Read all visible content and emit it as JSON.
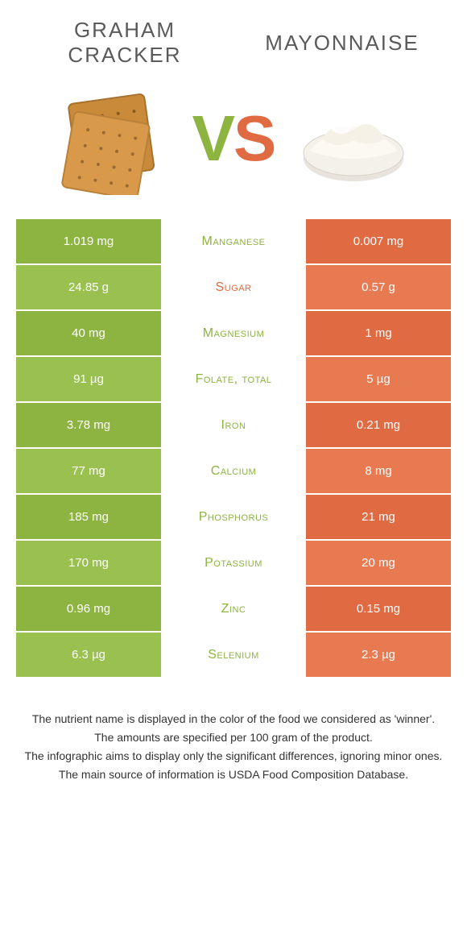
{
  "colors": {
    "left_bg": "#8db340",
    "left_bg_alt": "#9ac050",
    "right_bg": "#e06a42",
    "right_bg_alt": "#e87a52",
    "left_text": "#8db340",
    "right_text": "#e06a42",
    "row_border": "#ffffff"
  },
  "header": {
    "left_title": "Graham cracker",
    "right_title": "Mayonnaise",
    "vs_v": "V",
    "vs_s": "S"
  },
  "table": {
    "rows": [
      {
        "left": "1.019 mg",
        "label": "Manganese",
        "right": "0.007 mg",
        "winner": "left"
      },
      {
        "left": "24.85 g",
        "label": "Sugar",
        "right": "0.57 g",
        "winner": "right"
      },
      {
        "left": "40 mg",
        "label": "Magnesium",
        "right": "1 mg",
        "winner": "left"
      },
      {
        "left": "91 µg",
        "label": "Folate, total",
        "right": "5 µg",
        "winner": "left"
      },
      {
        "left": "3.78 mg",
        "label": "Iron",
        "right": "0.21 mg",
        "winner": "left"
      },
      {
        "left": "77 mg",
        "label": "Calcium",
        "right": "8 mg",
        "winner": "left"
      },
      {
        "left": "185 mg",
        "label": "Phosphorus",
        "right": "21 mg",
        "winner": "left"
      },
      {
        "left": "170 mg",
        "label": "Potassium",
        "right": "20 mg",
        "winner": "left"
      },
      {
        "left": "0.96 mg",
        "label": "Zinc",
        "right": "0.15 mg",
        "winner": "left"
      },
      {
        "left": "6.3 µg",
        "label": "Selenium",
        "right": "2.3 µg",
        "winner": "left"
      }
    ]
  },
  "footer": {
    "line1": "The nutrient name is displayed in the color of the food we considered as 'winner'.",
    "line2": "The amounts are specified per 100 gram of the product.",
    "line3": "The infographic aims to display only the significant differences, ignoring minor ones.",
    "line4": "The main source of information is USDA Food Composition Database."
  }
}
